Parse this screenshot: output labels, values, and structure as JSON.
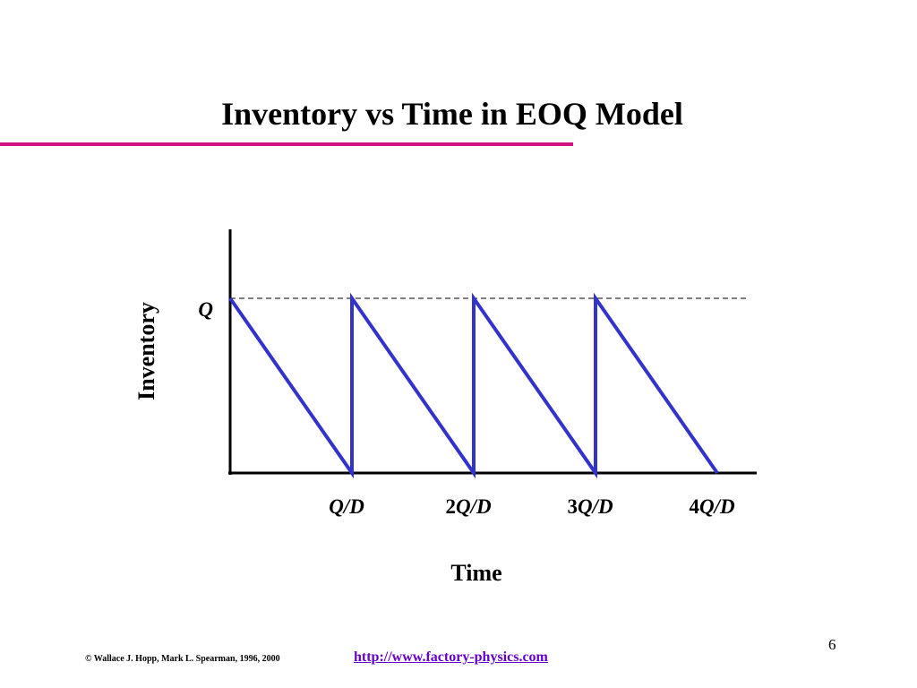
{
  "slide": {
    "title": "Inventory vs Time in EOQ Model",
    "page_number": "6",
    "copyright": "© Wallace J. Hopp, Mark L. Spearman, 1996, 2000",
    "link_text": "http://www.factory-physics.com",
    "colors": {
      "title_rule": "#d0147f",
      "series": "#3333cc",
      "link": "#6600cc",
      "axis": "#000000",
      "reference_line": "#000000"
    }
  },
  "chart_data": {
    "type": "line",
    "title": "",
    "xlabel": "Time",
    "ylabel": "Inventory",
    "xlim": [
      0,
      4.3
    ],
    "ylim": [
      0,
      1.4
    ],
    "grid": false,
    "x_ticks": [
      {
        "value": 1,
        "prefix": "",
        "var": "Q/D"
      },
      {
        "value": 2,
        "prefix": "2",
        "var": "Q/D"
      },
      {
        "value": 3,
        "prefix": "3",
        "var": "Q/D"
      },
      {
        "value": 4,
        "prefix": "4",
        "var": "Q/D"
      }
    ],
    "y_ticks": [
      {
        "value": 1,
        "label": "Q"
      }
    ],
    "reference_line": {
      "y": 1,
      "style": "dashed"
    },
    "series": [
      {
        "x": [
          0,
          1,
          1,
          2,
          2,
          3,
          3,
          4
        ],
        "y": [
          1,
          0,
          1,
          0,
          1,
          0,
          1,
          0
        ]
      }
    ]
  }
}
